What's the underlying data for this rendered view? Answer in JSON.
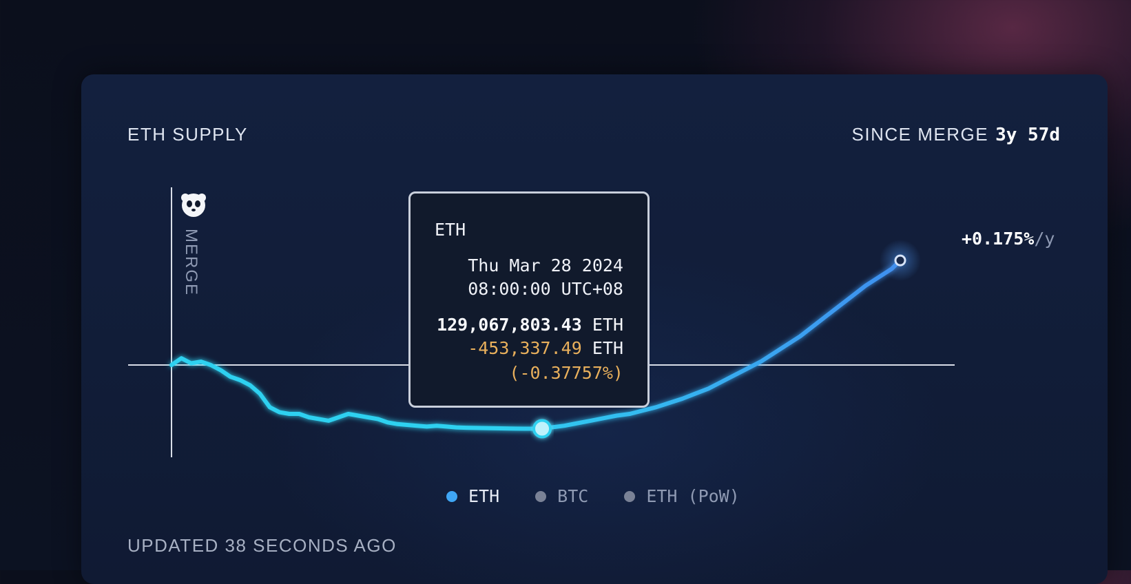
{
  "header": {
    "title": "ETH SUPPLY",
    "since_label": "SINCE MERGE",
    "since_value": "3y 57d"
  },
  "merge_marker": {
    "label": "MERGE",
    "icon": "panda-icon"
  },
  "end_rate": {
    "value": "+0.175%",
    "unit": "/y"
  },
  "tooltip": {
    "series": "ETH",
    "date": "Thu Mar 28 2024",
    "time": "08:00:00 UTC+08",
    "supply": "129,067,803.43",
    "supply_unit": "ETH",
    "delta": "-453,337.49",
    "delta_unit": "ETH",
    "delta_pct": "(-0.37757%)"
  },
  "legend": [
    {
      "label": "ETH",
      "color": "#3fa6f5",
      "active": true
    },
    {
      "label": "BTC",
      "color": "#7a8296",
      "active": false
    },
    {
      "label": "ETH (PoW)",
      "color": "#7a8296",
      "active": false
    }
  ],
  "footer": {
    "updated": "UPDATED 38 SECONDS AGO"
  },
  "colors": {
    "line_start": "#2ed1f0",
    "line_end": "#3f8ff0",
    "tooltip_accent": "#e9b05c"
  },
  "chart_data": {
    "type": "line",
    "series": [
      {
        "name": "ETH",
        "x_days": [
          0,
          15,
          30,
          45,
          60,
          75,
          90,
          105,
          120,
          135,
          150,
          165,
          180,
          195,
          210,
          225,
          240,
          255,
          270,
          285,
          300,
          315,
          330,
          345,
          360,
          375,
          390,
          405,
          420,
          435,
          450,
          465,
          480,
          495,
          510,
          525,
          540,
          555,
          566,
          580,
          600,
          620,
          640,
          660,
          680,
          700,
          720,
          740,
          760,
          780,
          800,
          820,
          840,
          860,
          880,
          900,
          920,
          940,
          960,
          980,
          1000,
          1020,
          1040,
          1060,
          1080,
          1100,
          1113
        ],
        "supply_change_pct": [
          0.0,
          0.04,
          0.01,
          0.02,
          0.0,
          -0.03,
          -0.07,
          -0.09,
          -0.12,
          -0.17,
          -0.25,
          -0.28,
          -0.29,
          -0.29,
          -0.31,
          -0.32,
          -0.33,
          -0.31,
          -0.29,
          -0.3,
          -0.31,
          -0.32,
          -0.34,
          -0.35,
          -0.355,
          -0.36,
          -0.365,
          -0.36,
          -0.365,
          -0.37,
          -0.372,
          -0.373,
          -0.374,
          -0.375,
          -0.376,
          -0.377,
          -0.3776,
          -0.3776,
          -0.37757,
          -0.37,
          -0.36,
          -0.345,
          -0.33,
          -0.315,
          -0.3,
          -0.29,
          -0.27,
          -0.25,
          -0.225,
          -0.2,
          -0.17,
          -0.14,
          -0.1,
          -0.06,
          -0.02,
          0.02,
          0.07,
          0.12,
          0.17,
          0.23,
          0.29,
          0.35,
          0.41,
          0.47,
          0.52,
          0.57,
          0.62
        ]
      }
    ],
    "baseline_pct": 0,
    "highlighted_point": {
      "x_day": 566,
      "supply_change_pct": -0.37757
    },
    "end_point": {
      "x_day": 1113
    }
  }
}
